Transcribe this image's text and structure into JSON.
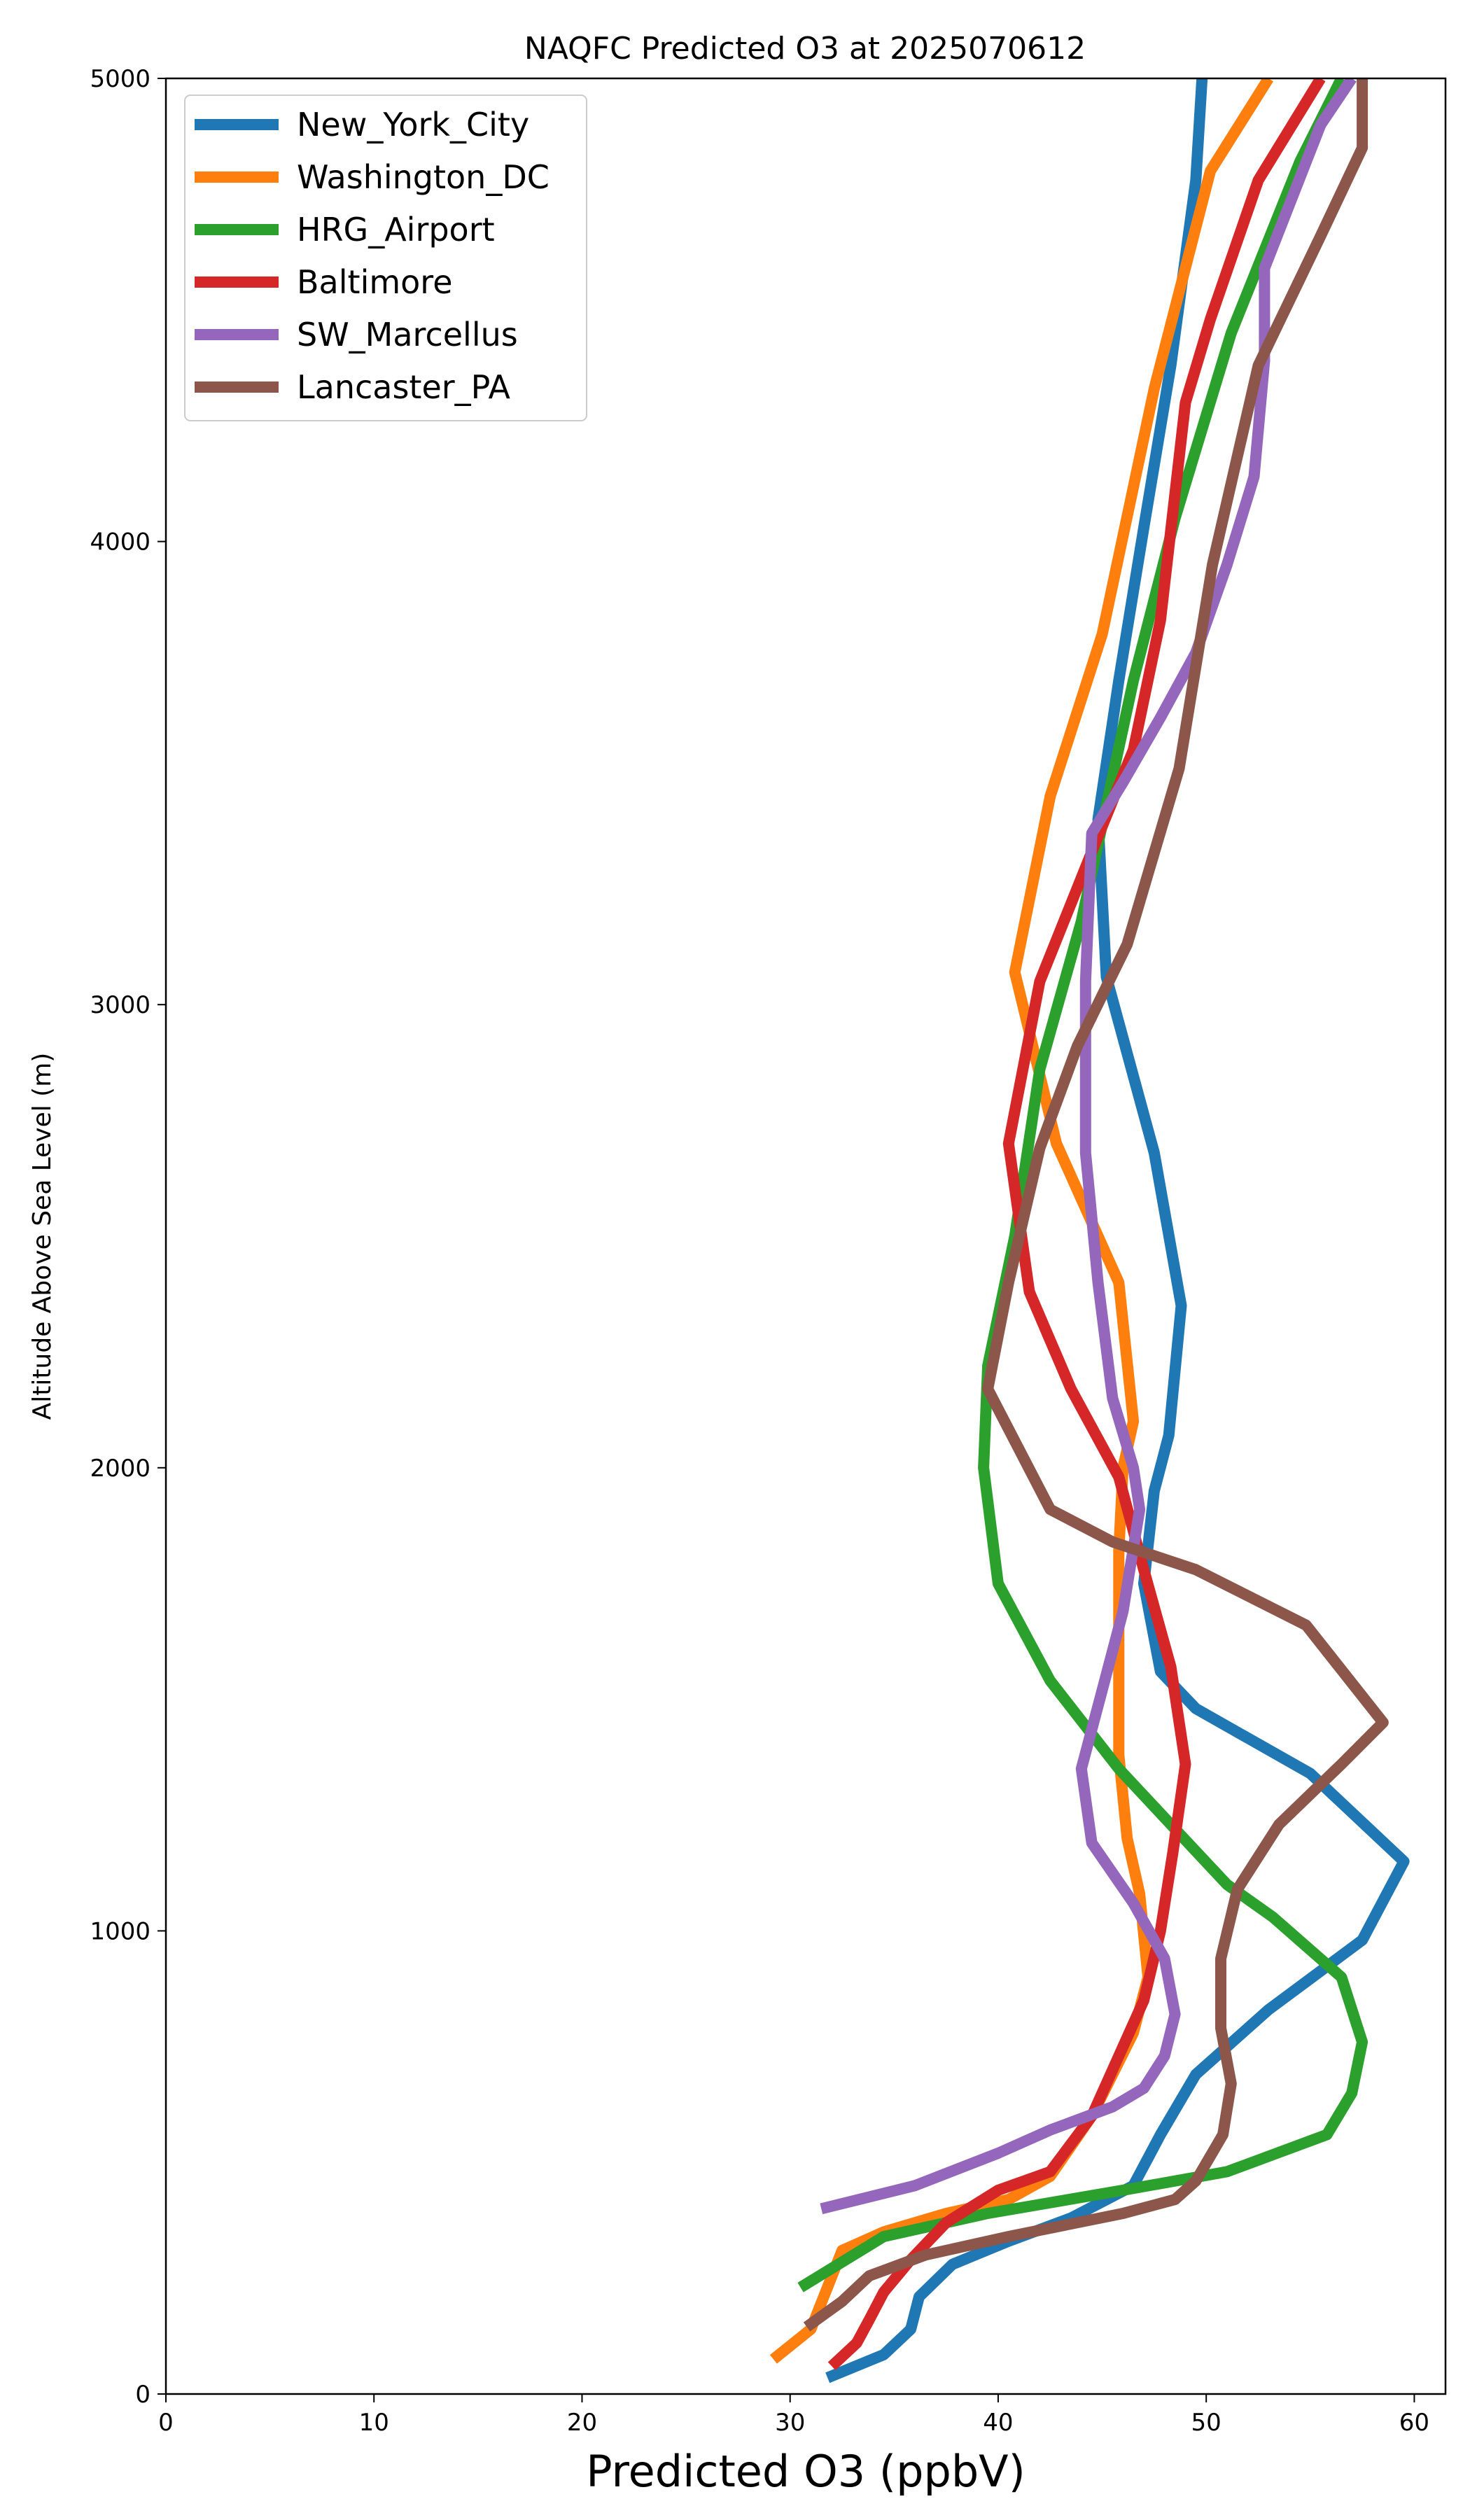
{
  "chart_data": {
    "type": "line",
    "title": "NAQFC Predicted O3 at 2025070612",
    "xlabel": "Predicted O3 (ppbV)",
    "ylabel": "Altitude Above Sea Level (m)",
    "xlim": [
      0,
      61.5
    ],
    "ylim": [
      0,
      5000
    ],
    "xticks": [
      0,
      10,
      20,
      30,
      40,
      50,
      60
    ],
    "yticks": [
      0,
      1000,
      2000,
      3000,
      4000,
      5000
    ],
    "grid": false,
    "legend_position": "top-left",
    "series": [
      {
        "name": "New_York_City",
        "color": "#1f77b4",
        "points": [
          [
            31.8,
            35
          ],
          [
            34.5,
            85
          ],
          [
            35.8,
            140
          ],
          [
            36.2,
            210
          ],
          [
            37.8,
            280
          ],
          [
            40.5,
            330
          ],
          [
            43.5,
            380
          ],
          [
            46.5,
            450
          ],
          [
            47.8,
            560
          ],
          [
            49.5,
            690
          ],
          [
            53,
            830
          ],
          [
            57.5,
            980
          ],
          [
            59.5,
            1150
          ],
          [
            55,
            1340
          ],
          [
            49.5,
            1480
          ],
          [
            47.8,
            1560
          ],
          [
            47,
            1750
          ],
          [
            47.5,
            1950
          ],
          [
            48.2,
            2070
          ],
          [
            48.8,
            2350
          ],
          [
            47.5,
            2680
          ],
          [
            45.2,
            3060
          ],
          [
            44.8,
            3400
          ],
          [
            45.8,
            3700
          ],
          [
            47,
            4030
          ],
          [
            48.3,
            4380
          ],
          [
            49.5,
            4780
          ],
          [
            49.8,
            5000
          ]
        ]
      },
      {
        "name": "Washington_DC",
        "color": "#ff7f0e",
        "points": [
          [
            29.2,
            75
          ],
          [
            31,
            140
          ],
          [
            32.5,
            310
          ],
          [
            34.5,
            350
          ],
          [
            37.5,
            390
          ],
          [
            40.5,
            420
          ],
          [
            42.5,
            470
          ],
          [
            44.5,
            600
          ],
          [
            46.5,
            780
          ],
          [
            47.2,
            900
          ],
          [
            46.8,
            1080
          ],
          [
            46.2,
            1200
          ],
          [
            45.8,
            1380
          ],
          [
            45.8,
            1600
          ],
          [
            45.8,
            1820
          ],
          [
            46,
            2000
          ],
          [
            46.5,
            2100
          ],
          [
            45.8,
            2400
          ],
          [
            42.8,
            2700
          ],
          [
            40.8,
            3070
          ],
          [
            42.5,
            3450
          ],
          [
            45,
            3800
          ],
          [
            47.5,
            4330
          ],
          [
            50.2,
            4800
          ],
          [
            53,
            5000
          ]
        ]
      },
      {
        "name": "HRG_Airport",
        "color": "#2ca02c",
        "points": [
          [
            30.5,
            230
          ],
          [
            34.5,
            340
          ],
          [
            39.5,
            390
          ],
          [
            46,
            440
          ],
          [
            51,
            480
          ],
          [
            55.8,
            560
          ],
          [
            57,
            650
          ],
          [
            57.5,
            760
          ],
          [
            56.5,
            900
          ],
          [
            53.2,
            1030
          ],
          [
            51,
            1100
          ],
          [
            48.5,
            1220
          ],
          [
            45.8,
            1350
          ],
          [
            42.5,
            1540
          ],
          [
            40,
            1750
          ],
          [
            39.3,
            2000
          ],
          [
            39.5,
            2220
          ],
          [
            40.8,
            2500
          ],
          [
            42,
            2860
          ],
          [
            44,
            3180
          ],
          [
            46.5,
            3700
          ],
          [
            48.5,
            4050
          ],
          [
            51.2,
            4450
          ],
          [
            54.5,
            4820
          ],
          [
            56.5,
            5000
          ]
        ]
      },
      {
        "name": "Baltimore",
        "color": "#d62728",
        "points": [
          [
            32,
            60
          ],
          [
            33.2,
            110
          ],
          [
            33.8,
            160
          ],
          [
            34.5,
            220
          ],
          [
            35.8,
            290
          ],
          [
            37.5,
            370
          ],
          [
            40,
            440
          ],
          [
            42.5,
            480
          ],
          [
            44.5,
            600
          ],
          [
            45.5,
            700
          ],
          [
            47,
            850
          ],
          [
            47.8,
            1000
          ],
          [
            48.4,
            1170
          ],
          [
            49,
            1360
          ],
          [
            48.3,
            1570
          ],
          [
            47,
            1780
          ],
          [
            45.8,
            1980
          ],
          [
            43.5,
            2170
          ],
          [
            41.5,
            2380
          ],
          [
            40.5,
            2700
          ],
          [
            42,
            3050
          ],
          [
            44.5,
            3330
          ],
          [
            46.5,
            3550
          ],
          [
            47.8,
            3830
          ],
          [
            49,
            4300
          ],
          [
            50.2,
            4480
          ],
          [
            52.5,
            4780
          ],
          [
            55.5,
            5000
          ]
        ]
      },
      {
        "name": "SW_Marcellus",
        "color": "#9467bd",
        "points": [
          [
            31.5,
            400
          ],
          [
            36,
            450
          ],
          [
            40,
            520
          ],
          [
            42.5,
            570
          ],
          [
            45.5,
            620
          ],
          [
            47,
            660
          ],
          [
            48,
            730
          ],
          [
            48.5,
            820
          ],
          [
            48,
            940
          ],
          [
            46.5,
            1060
          ],
          [
            44.5,
            1190
          ],
          [
            44,
            1350
          ],
          [
            45,
            1520
          ],
          [
            46,
            1690
          ],
          [
            46.8,
            1910
          ],
          [
            46.5,
            2000
          ],
          [
            45.5,
            2150
          ],
          [
            44.8,
            2400
          ],
          [
            44.2,
            2680
          ],
          [
            44.2,
            3050
          ],
          [
            44.5,
            3370
          ],
          [
            46,
            3480
          ],
          [
            47.8,
            3620
          ],
          [
            49.5,
            3760
          ],
          [
            51,
            3950
          ],
          [
            52.3,
            4140
          ],
          [
            52.8,
            4390
          ],
          [
            52.8,
            4590
          ],
          [
            55.5,
            4900
          ],
          [
            57,
            5000
          ]
        ]
      },
      {
        "name": "Lancaster_PA",
        "color": "#8c564b",
        "points": [
          [
            30.8,
            145
          ],
          [
            32.5,
            200
          ],
          [
            33.8,
            255
          ],
          [
            36.5,
            300
          ],
          [
            40.5,
            340
          ],
          [
            46,
            390
          ],
          [
            48.5,
            420
          ],
          [
            49.5,
            460
          ],
          [
            50.8,
            560
          ],
          [
            51.2,
            670
          ],
          [
            50.7,
            790
          ],
          [
            50.7,
            940
          ],
          [
            51.5,
            1090
          ],
          [
            53.5,
            1230
          ],
          [
            56.5,
            1360
          ],
          [
            58.5,
            1450
          ],
          [
            54.8,
            1660
          ],
          [
            49.5,
            1780
          ],
          [
            45.5,
            1840
          ],
          [
            42.5,
            1910
          ],
          [
            39.5,
            2170
          ],
          [
            40.5,
            2400
          ],
          [
            42,
            2690
          ],
          [
            43.8,
            2910
          ],
          [
            46.2,
            3130
          ],
          [
            48.7,
            3510
          ],
          [
            50.3,
            3950
          ],
          [
            52.5,
            4380
          ],
          [
            55.5,
            4660
          ],
          [
            57.5,
            4850
          ],
          [
            57.5,
            5000
          ]
        ]
      }
    ]
  }
}
